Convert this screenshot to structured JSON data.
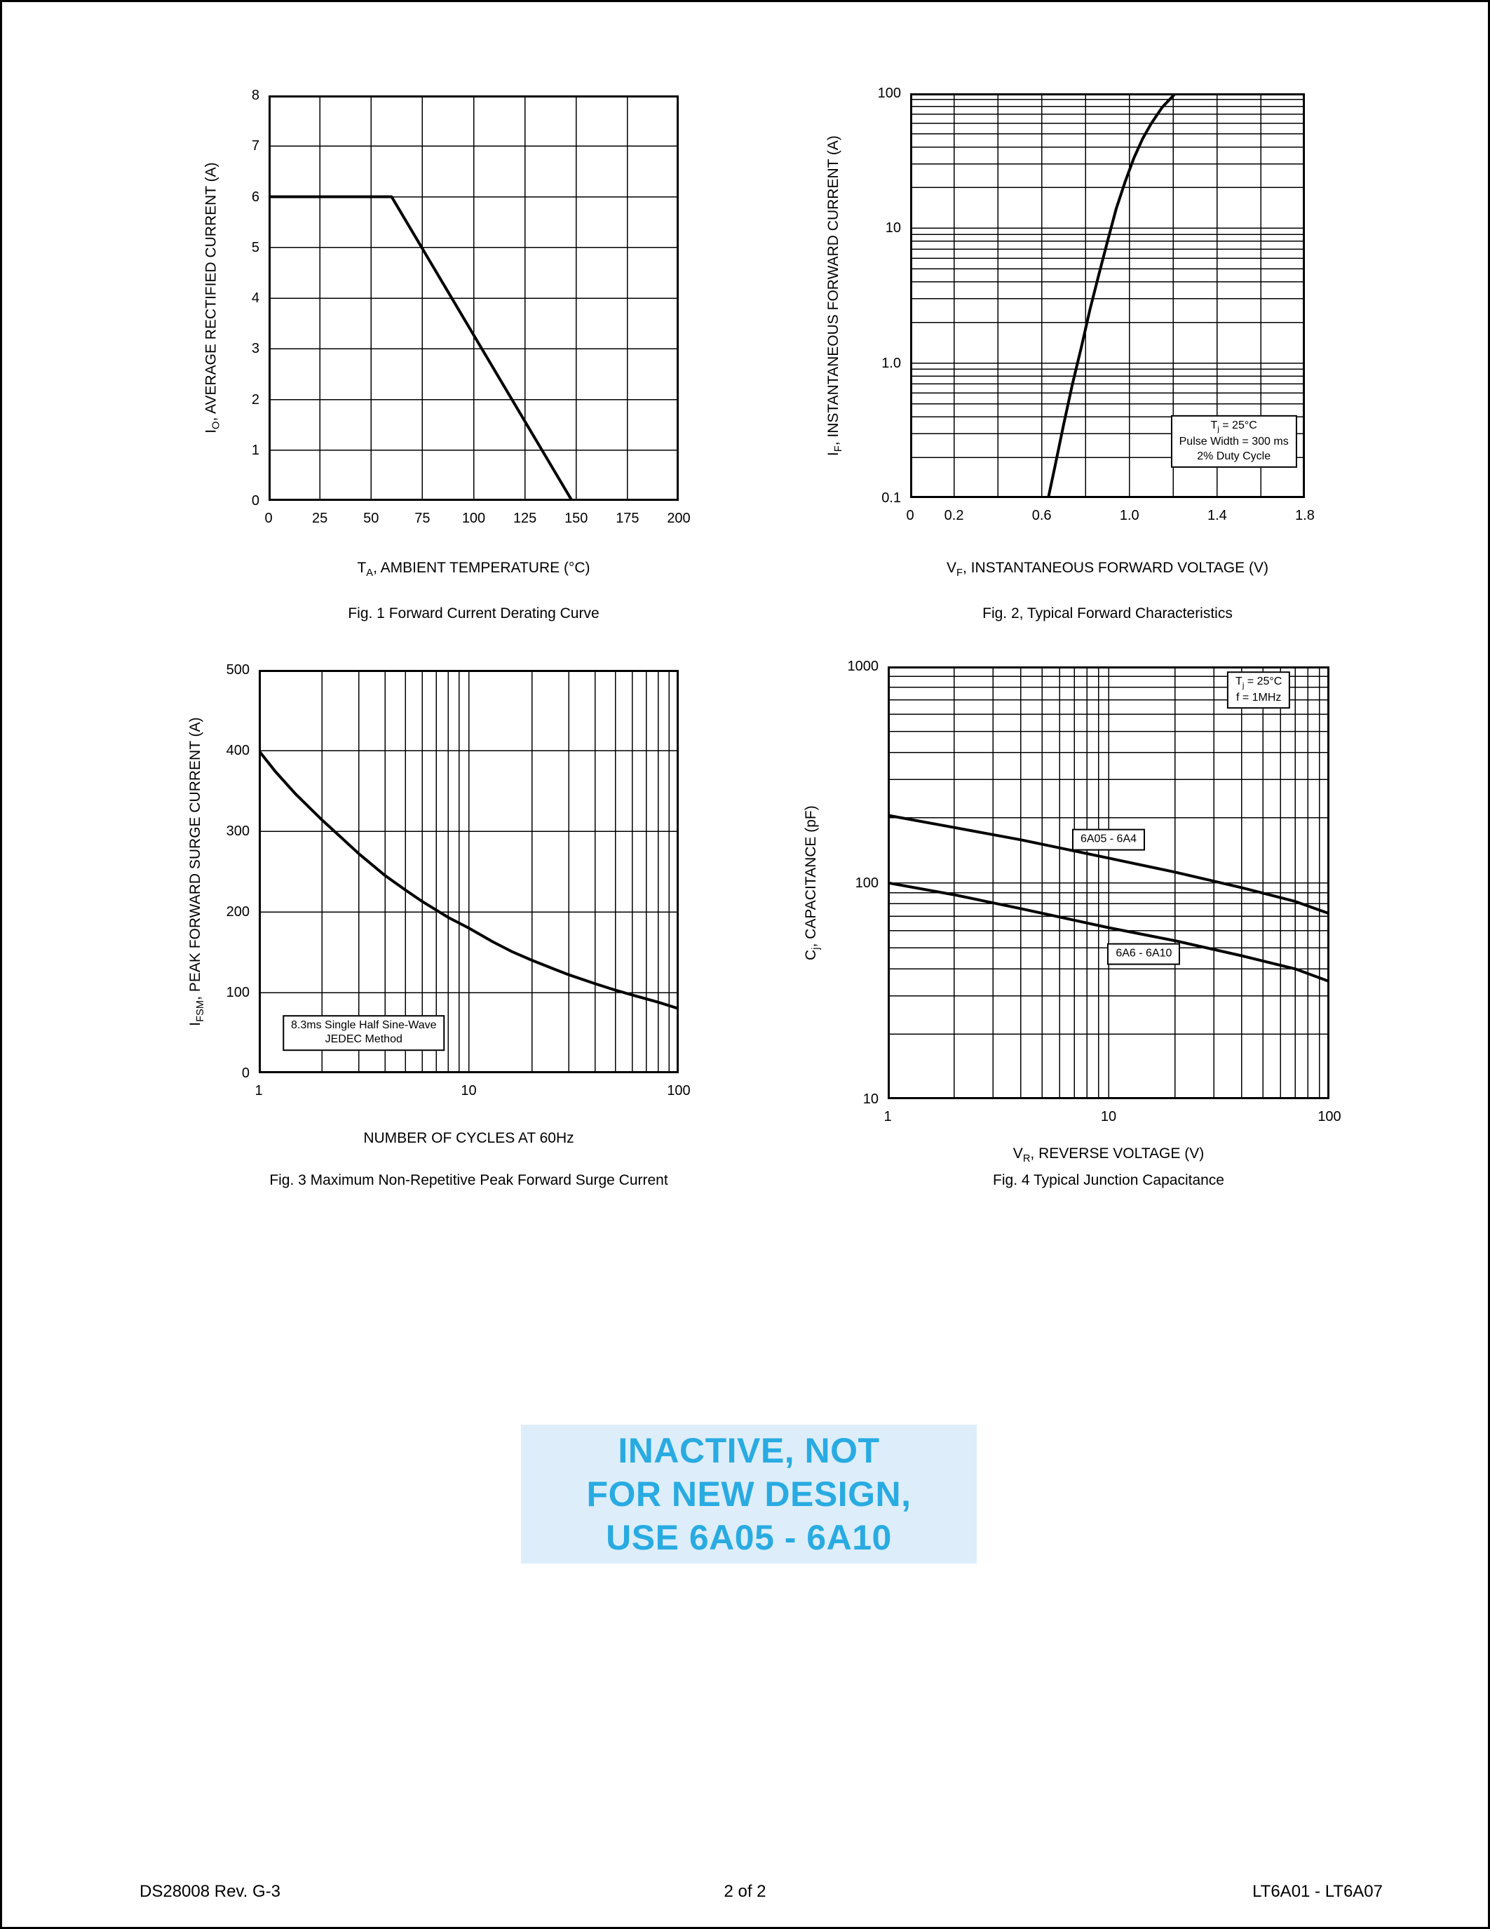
{
  "page": {
    "watermark": {
      "lines": [
        "INACTIVE, NOT",
        "FOR NEW DESIGN,",
        "USE 6A05 - 6A10"
      ],
      "color": "#29abe2",
      "bg": "#ddeefa"
    },
    "footer": {
      "left": "DS28008 Rev. G-3",
      "center": "2 of 2",
      "right": "LT6A01 - LT6A07"
    }
  },
  "chart_data": [
    {
      "type": "line",
      "caption": "Fig. 1  Forward Current Derating Curve",
      "xlabel": {
        "segs": [
          {
            "t": "T"
          },
          {
            "t": "A",
            "sub": true
          },
          {
            "t": ", AMBIENT TEMPERATURE (°C)"
          }
        ]
      },
      "ylabel": {
        "segs": [
          {
            "t": "I"
          },
          {
            "t": "O",
            "sub": true
          },
          {
            "t": ", AVERAGE RECTIFIED CURRENT (A)"
          }
        ]
      },
      "x": {
        "scale": "linear",
        "min": 0,
        "max": 200,
        "grid_step": 25,
        "ticks": [
          {
            "v": 0,
            "label": "0"
          },
          {
            "v": 25,
            "label": "25"
          },
          {
            "v": 50,
            "label": "50"
          },
          {
            "v": 75,
            "label": "75"
          },
          {
            "v": 100,
            "label": "100"
          },
          {
            "v": 125,
            "label": "125"
          },
          {
            "v": 150,
            "label": "150"
          },
          {
            "v": 175,
            "label": "175"
          },
          {
            "v": 200,
            "label": "200"
          }
        ]
      },
      "y": {
        "scale": "linear",
        "min": 0,
        "max": 8,
        "grid_step": 1,
        "ticks": [
          {
            "v": 0,
            "label": "0"
          },
          {
            "v": 1,
            "label": "1"
          },
          {
            "v": 2,
            "label": "2"
          },
          {
            "v": 3,
            "label": "3"
          },
          {
            "v": 4,
            "label": "4"
          },
          {
            "v": 5,
            "label": "5"
          },
          {
            "v": 6,
            "label": "6"
          },
          {
            "v": 7,
            "label": "7"
          },
          {
            "v": 8,
            "label": "8"
          }
        ]
      },
      "series": [
        {
          "name": "derating-curve",
          "points": [
            [
              0,
              6
            ],
            [
              60,
              6
            ],
            [
              148,
              0
            ]
          ]
        }
      ],
      "annotations": [],
      "layout": {
        "plot": [
          380,
          133,
          585,
          578
        ],
        "ylabel_x": 300,
        "xlabel_y": 795,
        "caption_y": 860
      }
    },
    {
      "type": "line",
      "caption": "Fig. 2, Typical Forward Characteristics",
      "xlabel": {
        "segs": [
          {
            "t": "V"
          },
          {
            "t": "F",
            "sub": true
          },
          {
            "t": ", INSTANTANEOUS FORWARD VOLTAGE (V)"
          }
        ]
      },
      "ylabel": {
        "segs": [
          {
            "t": "I"
          },
          {
            "t": "F",
            "sub": true
          },
          {
            "t": ", INSTANTANEOUS FORWARD CURRENT (A)"
          }
        ]
      },
      "x": {
        "scale": "linear",
        "min": 0,
        "max": 1.8,
        "grid_step": 0.2,
        "ticks": [
          {
            "v": 0,
            "label": "0"
          },
          {
            "v": 0.2,
            "label": "0.2"
          },
          {
            "v": 0.6,
            "label": "0.6"
          },
          {
            "v": 1,
            "label": "1.0"
          },
          {
            "v": 1.4,
            "label": "1.4"
          },
          {
            "v": 1.8,
            "label": "1.8"
          }
        ]
      },
      "y": {
        "scale": "log",
        "min": 0.1,
        "max": 100,
        "ticks": [
          {
            "v": 100,
            "label": "100"
          },
          {
            "v": 10,
            "label": "10"
          },
          {
            "v": 1,
            "label": "1.0"
          },
          {
            "v": 0.1,
            "label": "0.1"
          }
        ]
      },
      "series": [
        {
          "name": "forward-characteristic",
          "points": [
            [
              0.63,
              0.1
            ],
            [
              0.66,
              0.17
            ],
            [
              0.7,
              0.35
            ],
            [
              0.74,
              0.7
            ],
            [
              0.78,
              1.3
            ],
            [
              0.82,
              2.5
            ],
            [
              0.86,
              4.5
            ],
            [
              0.9,
              8
            ],
            [
              0.94,
              14
            ],
            [
              0.98,
              22
            ],
            [
              1.02,
              33
            ],
            [
              1.06,
              46
            ],
            [
              1.1,
              60
            ],
            [
              1.15,
              79
            ],
            [
              1.21,
              100
            ]
          ]
        }
      ],
      "annotations": [
        {
          "x": 0.82,
          "y": 0.86,
          "boxed": true,
          "lines": [
            {
              "segs": [
                {
                  "t": "T"
                },
                {
                  "t": "j",
                  "sub": true
                },
                {
                  "t": " = 25°C"
                }
              ]
            },
            {
              "segs": [
                {
                  "t": "Pulse Width = 300 ms"
                }
              ]
            },
            {
              "segs": [
                {
                  "t": "2% Duty Cycle"
                }
              ]
            }
          ]
        }
      ],
      "layout": {
        "plot": [
          1295,
          130,
          563,
          577
        ],
        "ylabel_x": 1187,
        "xlabel_y": 795,
        "caption_y": 860
      }
    },
    {
      "type": "line",
      "caption": "Fig. 3  Maximum Non-Repetitive Peak Forward Surge Current",
      "xlabel": {
        "segs": [
          {
            "t": "NUMBER OF CYCLES AT 60Hz"
          }
        ]
      },
      "ylabel": {
        "segs": [
          {
            "t": "I"
          },
          {
            "t": "FSM",
            "sub": true
          },
          {
            "t": ", PEAK FORWARD SURGE CURRENT (A)"
          }
        ]
      },
      "x": {
        "scale": "log",
        "min": 1,
        "max": 100,
        "ticks": [
          {
            "v": 1,
            "label": "1"
          },
          {
            "v": 10,
            "label": "10"
          },
          {
            "v": 100,
            "label": "100"
          }
        ]
      },
      "y": {
        "scale": "linear",
        "min": 0,
        "max": 500,
        "grid_step": 100,
        "ticks": [
          {
            "v": 0,
            "label": "0"
          },
          {
            "v": 100,
            "label": "100"
          },
          {
            "v": 200,
            "label": "200"
          },
          {
            "v": 300,
            "label": "300"
          },
          {
            "v": 400,
            "label": "400"
          },
          {
            "v": 500,
            "label": "500"
          }
        ]
      },
      "series": [
        {
          "name": "surge-current",
          "points": [
            [
              1,
              400
            ],
            [
              1.2,
              374
            ],
            [
              1.5,
              346
            ],
            [
              2,
              314
            ],
            [
              2.5,
              291
            ],
            [
              3,
              272
            ],
            [
              4,
              245
            ],
            [
              5,
              227
            ],
            [
              6,
              213
            ],
            [
              8,
              193
            ],
            [
              10,
              180
            ],
            [
              13,
              163
            ],
            [
              16,
              151
            ],
            [
              20,
              140
            ],
            [
              25,
              130
            ],
            [
              30,
              122
            ],
            [
              40,
              111
            ],
            [
              50,
              103
            ],
            [
              60,
              97
            ],
            [
              80,
              88
            ],
            [
              100,
              80
            ]
          ]
        }
      ],
      "annotations": [
        {
          "x": 0.25,
          "y": 0.9,
          "boxed": true,
          "lines": [
            {
              "segs": [
                {
                  "t": "8.3ms Single Half Sine-Wave"
                }
              ]
            },
            {
              "segs": [
                {
                  "t": "JEDEC Method"
                }
              ]
            }
          ]
        }
      ],
      "layout": {
        "plot": [
          366,
          952,
          599,
          575
        ],
        "ylabel_x": 277,
        "xlabel_y": 1608,
        "caption_y": 1668
      }
    },
    {
      "type": "line",
      "caption": "Fig. 4  Typical Junction Capacitance",
      "xlabel": {
        "segs": [
          {
            "t": "V"
          },
          {
            "t": "R",
            "sub": true
          },
          {
            "t": ", REVERSE VOLTAGE (V)"
          }
        ]
      },
      "ylabel": {
        "segs": [
          {
            "t": "C"
          },
          {
            "t": "j",
            "sub": true
          },
          {
            "t": ", CAPACITANCE (pF)"
          }
        ]
      },
      "x": {
        "scale": "log",
        "min": 1,
        "max": 100,
        "ticks": [
          {
            "v": 1,
            "label": "1"
          },
          {
            "v": 10,
            "label": "10"
          },
          {
            "v": 100,
            "label": "100"
          }
        ]
      },
      "y": {
        "scale": "log",
        "min": 10,
        "max": 1000,
        "ticks": [
          {
            "v": 1000,
            "label": "1000"
          },
          {
            "v": 100,
            "label": "100"
          },
          {
            "v": 10,
            "label": "10"
          }
        ]
      },
      "series": [
        {
          "name": "6A05-6A4",
          "points": [
            [
              1,
              205
            ],
            [
              2,
              180
            ],
            [
              4,
              158
            ],
            [
              10,
              130
            ],
            [
              20,
              112
            ],
            [
              40,
              95
            ],
            [
              70,
              82
            ],
            [
              100,
              72
            ]
          ]
        },
        {
          "name": "6A6-6A10",
          "points": [
            [
              1,
              100
            ],
            [
              2,
              88
            ],
            [
              4,
              76
            ],
            [
              10,
              62
            ],
            [
              20,
              54
            ],
            [
              40,
              46
            ],
            [
              70,
              40
            ],
            [
              100,
              35
            ]
          ]
        }
      ],
      "annotations": [
        {
          "x": 0.84,
          "y": 0.055,
          "boxed": true,
          "lines": [
            {
              "segs": [
                {
                  "t": "T"
                },
                {
                  "t": "j",
                  "sub": true
                },
                {
                  "t": " = 25°C"
                }
              ]
            },
            {
              "segs": [
                {
                  "t": "f = 1MHz"
                }
              ]
            }
          ]
        },
        {
          "x": 0.5,
          "y": 0.4,
          "boxed": true,
          "lines": [
            {
              "segs": [
                {
                  "t": "6A05 - 6A4"
                }
              ]
            }
          ]
        },
        {
          "x": 0.58,
          "y": 0.665,
          "boxed": true,
          "lines": [
            {
              "segs": [
                {
                  "t": "6A6 - 6A10"
                }
              ]
            }
          ]
        }
      ],
      "layout": {
        "plot": [
          1263,
          947,
          630,
          617
        ],
        "ylabel_x": 1155,
        "xlabel_y": 1630,
        "caption_y": 1668
      }
    }
  ]
}
